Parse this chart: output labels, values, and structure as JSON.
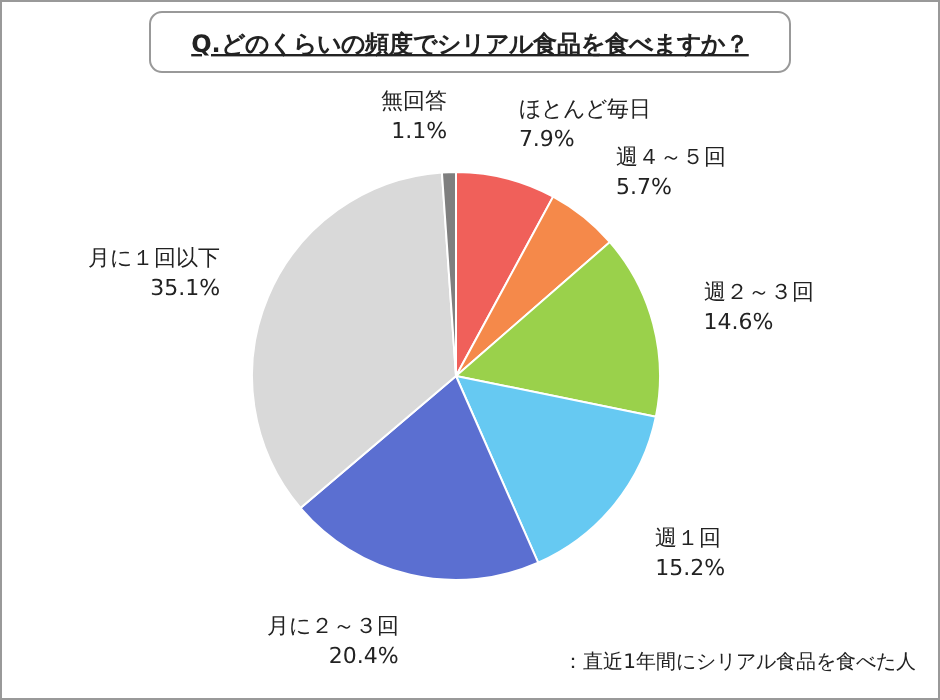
{
  "chart_data": {
    "type": "pie",
    "title": "Q.どのくらいの頻度でシリアル食品を食べますか？",
    "categories": [
      "ほとんど毎日",
      "週４～５回",
      "週２～３回",
      "週１回",
      "月に２～３回",
      "月に１回以下",
      "無回答"
    ],
    "values": [
      7.9,
      5.7,
      14.6,
      15.2,
      20.4,
      35.1,
      1.1
    ],
    "value_labels": [
      "7.9%",
      "5.7%",
      "14.6%",
      "15.2%",
      "20.4%",
      "35.1%",
      "1.1%"
    ],
    "colors": [
      "#f0605a",
      "#f5894a",
      "#9ad14b",
      "#66c9f2",
      "#5b6fd1",
      "#d9d9d9",
      "#7f7f7f"
    ],
    "annotations": [
      "：直近1年間にシリアル食品を食べた人"
    ]
  }
}
